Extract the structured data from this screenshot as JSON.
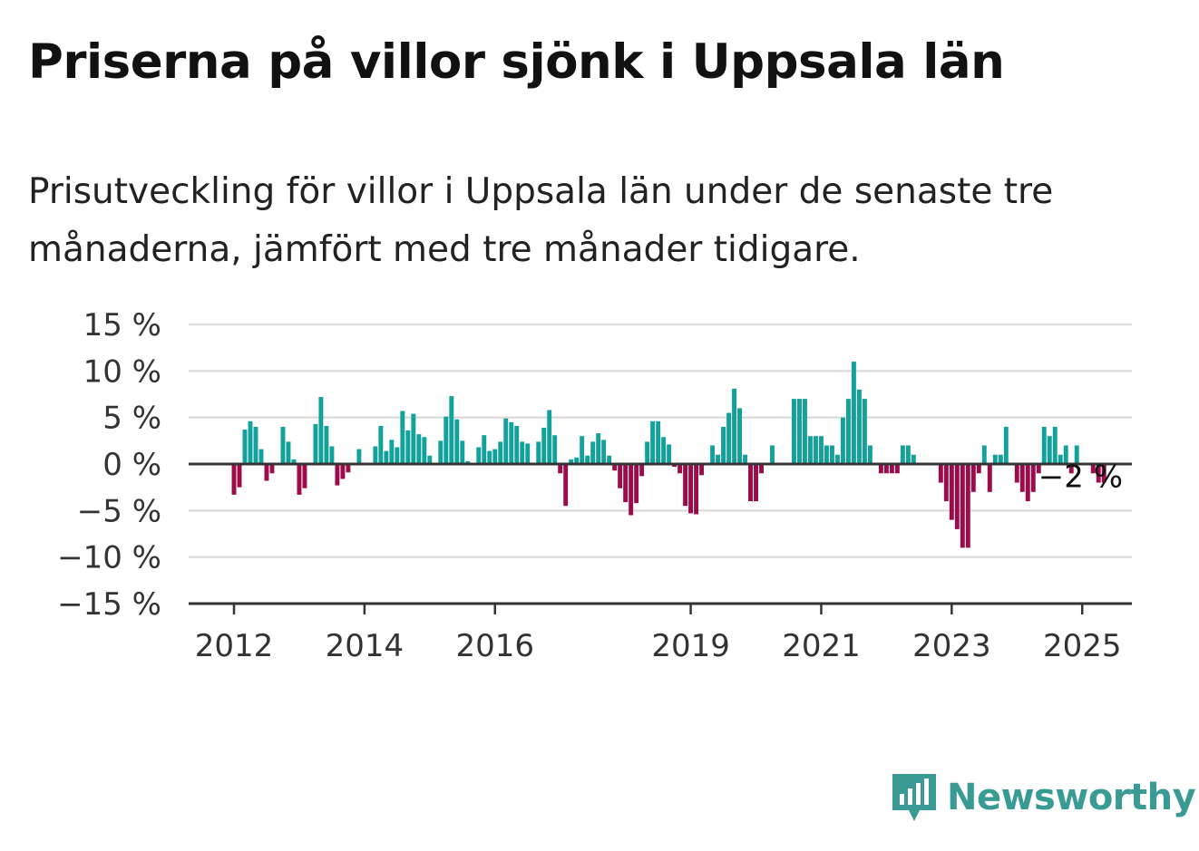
{
  "title": "Priserna på villor sjönk i Uppsala län",
  "subtitle": "Prisutveckling för villor i Uppsala län under de senaste tre månaderna, jämfört med tre månader tidigare.",
  "brand": {
    "name": "Newsworthy",
    "icon": "newsworthy-chart-icon"
  },
  "colors": {
    "positive": "#12a29b",
    "negative": "#9e0b4a",
    "grid": "#dddddd",
    "axis": "#333333",
    "brand": "#3a9a94"
  },
  "chart_data": {
    "type": "bar",
    "title": "Priserna på villor sjönk i Uppsala län",
    "subtitle": "Prisutveckling för villor i Uppsala län under de senaste tre månaderna, jämfört med tre månader tidigare.",
    "xlabel": "",
    "ylabel": "",
    "unit": "%",
    "x_start": "2012-01",
    "frequency": "monthly",
    "ylim": [
      -15,
      15
    ],
    "yticks": [
      15,
      10,
      5,
      0,
      -5,
      -10,
      -15
    ],
    "ytick_labels": [
      "15 %",
      "10 %",
      "5 %",
      "0 %",
      "−5 %",
      "−10 %",
      "−15 %"
    ],
    "xtick_labels": [
      "2012",
      "2014",
      "2016",
      "2019",
      "2021",
      "2023",
      "2025"
    ],
    "xtick_dates": [
      "2012-01",
      "2014-01",
      "2016-01",
      "2019-01",
      "2021-01",
      "2023-01",
      "2025-01"
    ],
    "grid": true,
    "legend": "none",
    "last_value_label": "−2 %",
    "values": [
      -3.3,
      -2.5,
      3.7,
      4.6,
      4.0,
      1.6,
      -1.8,
      -1.0,
      0,
      4.0,
      2.4,
      0.5,
      -3.3,
      -2.6,
      0,
      4.3,
      7.2,
      4.1,
      1.9,
      -2.3,
      -1.6,
      -0.9,
      0,
      1.6,
      0,
      0,
      1.9,
      4.1,
      1.4,
      2.6,
      1.8,
      5.7,
      3.6,
      5.4,
      3.2,
      2.9,
      0.9,
      0,
      2.5,
      5.1,
      7.3,
      4.8,
      2.5,
      0.3,
      0,
      1.8,
      3.1,
      1.4,
      1.6,
      2.4,
      4.9,
      4.5,
      4.1,
      2.4,
      2.2,
      0,
      2.4,
      3.9,
      5.8,
      3.1,
      -1.0,
      -4.5,
      0.5,
      0.7,
      3.0,
      0.9,
      2.4,
      3.3,
      2.6,
      0.9,
      -0.7,
      -2.6,
      -4.1,
      -5.5,
      -4.2,
      -1.3,
      2.4,
      4.6,
      4.6,
      2.9,
      2.1,
      -0.3,
      -1.0,
      -4.5,
      -5.3,
      -5.4,
      -1.2,
      0,
      2.0,
      1.0,
      4.0,
      5.5,
      8.1,
      6.0,
      1.0,
      -4.0,
      -4.0,
      -1.0,
      0,
      2.0,
      0,
      0,
      0,
      7.0,
      7.0,
      7.0,
      3.0,
      3.0,
      3.0,
      2.0,
      2.0,
      1.0,
      5.0,
      7.0,
      11.0,
      8.0,
      7.0,
      2.0,
      0,
      -1.0,
      -1.0,
      -1.0,
      -1.0,
      2.0,
      2.0,
      1.0,
      0,
      0,
      0,
      0,
      -2.0,
      -4.0,
      -6.0,
      -7.0,
      -9.0,
      -9.0,
      -3.0,
      -1.0,
      2.0,
      -3.0,
      1.0,
      1.0,
      4.0,
      0,
      -2.0,
      -3.0,
      -4.0,
      -3.0,
      -1.0,
      4.0,
      3.0,
      4.0,
      1.0,
      2.0,
      -1.0,
      2.0,
      0,
      0,
      -1.0,
      -2.0,
      -2.0
    ]
  }
}
